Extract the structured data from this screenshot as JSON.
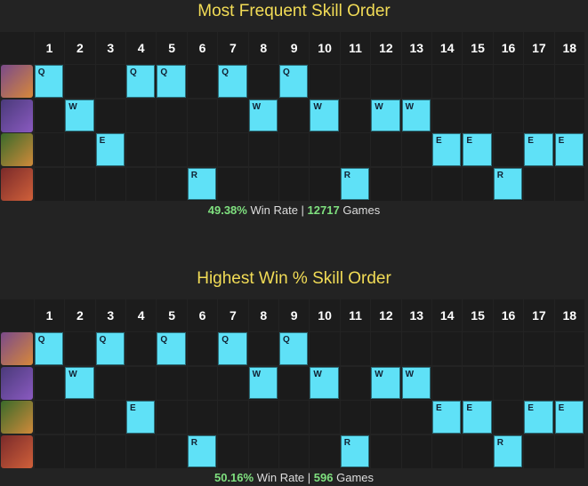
{
  "sections": [
    {
      "title": "Most Frequent Skill Order",
      "levels": [
        1,
        2,
        3,
        4,
        5,
        6,
        7,
        8,
        9,
        10,
        11,
        12,
        13,
        14,
        15,
        16,
        17,
        18
      ],
      "rows": [
        {
          "skill": "Q",
          "levels": [
            1,
            4,
            5,
            7,
            9
          ]
        },
        {
          "skill": "W",
          "levels": [
            2,
            8,
            10,
            12,
            13
          ]
        },
        {
          "skill": "E",
          "levels": [
            3,
            14,
            15,
            17,
            18
          ]
        },
        {
          "skill": "R",
          "levels": [
            6,
            11,
            16
          ]
        }
      ],
      "footer": {
        "win_rate": "49.38%",
        "win_rate_label": "Win Rate |",
        "games": "12717",
        "games_label": "Games"
      }
    },
    {
      "title": "Highest Win % Skill Order",
      "levels": [
        1,
        2,
        3,
        4,
        5,
        6,
        7,
        8,
        9,
        10,
        11,
        12,
        13,
        14,
        15,
        16,
        17,
        18
      ],
      "rows": [
        {
          "skill": "Q",
          "levels": [
            1,
            3,
            5,
            7,
            9
          ]
        },
        {
          "skill": "W",
          "levels": [
            2,
            8,
            10,
            12,
            13
          ]
        },
        {
          "skill": "E",
          "levels": [
            4,
            14,
            15,
            17,
            18
          ]
        },
        {
          "skill": "R",
          "levels": [
            6,
            11,
            16
          ]
        }
      ],
      "footer": {
        "win_rate": "50.16%",
        "win_rate_label": "Win Rate |",
        "games": "596",
        "games_label": "Games"
      }
    }
  ]
}
